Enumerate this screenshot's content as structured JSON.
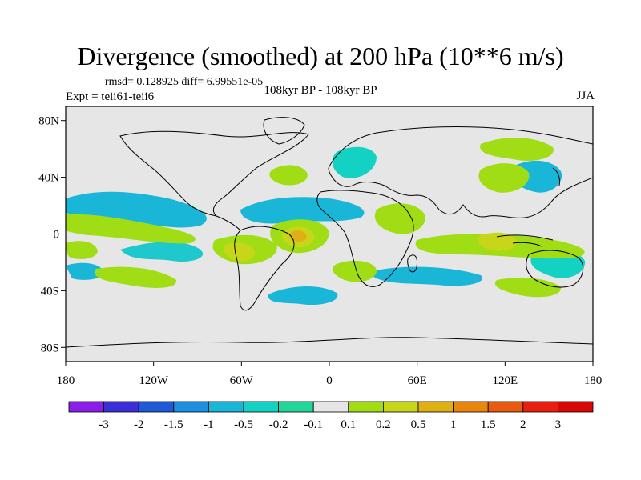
{
  "title": "Divergence (smoothed) at 200 hPa (10**6 m/s)",
  "stats": "rmsd= 0.128925 diff= 6.99551e-05",
  "experiment": "Expt = teii61-teii6",
  "period": "108kyr BP - 108kyr BP",
  "season": "JJA",
  "map": {
    "lat_ticks": [
      "80N",
      "40N",
      "0",
      "40S",
      "80S"
    ],
    "lon_ticks": [
      "180",
      "120W",
      "60W",
      "0",
      "60E",
      "120E",
      "180"
    ],
    "land_color": "#e6e6e6"
  },
  "colorbar": {
    "labels": [
      "-3",
      "-2",
      "-1.5",
      "-1",
      "-0.5",
      "-0.2",
      "-0.1",
      "0.1",
      "0.2",
      "0.5",
      "1",
      "1.5",
      "2",
      "3"
    ],
    "colors": [
      "#8a1de8",
      "#3c2fd8",
      "#1e5ad6",
      "#1d8ee0",
      "#19b6d8",
      "#13d2c4",
      "#22d69a",
      "#e6e6e6",
      "#a0dd14",
      "#c8d61a",
      "#dfb014",
      "#e8860e",
      "#e85a10",
      "#e81e0e",
      "#d80808"
    ]
  }
}
